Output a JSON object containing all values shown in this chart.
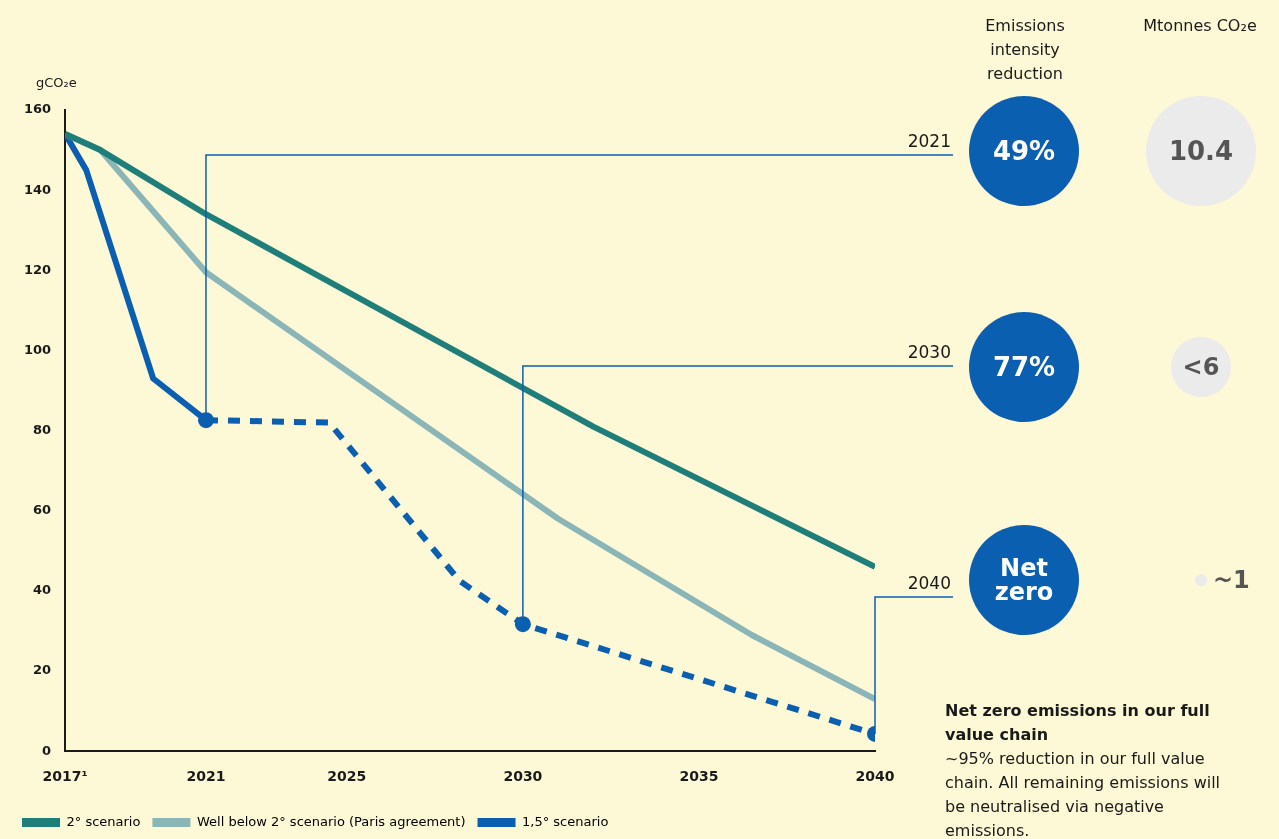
{
  "chart_data": {
    "type": "line",
    "ylabel": "gCO₂e",
    "xlim": [
      2017,
      2040
    ],
    "xticks": [
      {
        "value": 2017,
        "label": "2017¹"
      },
      2021,
      2025,
      2030,
      2035,
      2040
    ],
    "ylim": [
      0,
      160
    ],
    "yticks": [
      0,
      20,
      40,
      60,
      80,
      100,
      120,
      140,
      160
    ],
    "grid": false,
    "legend": "bottom left",
    "marker": "none",
    "line_style": "solid",
    "series": [
      {
        "name": "2° scenario",
        "color": "#1e7f7a",
        "x": [
          2017,
          2018,
          2021,
          2032,
          2040
        ],
        "values": [
          154,
          150,
          134,
          81,
          46
        ]
      },
      {
        "name": "Well below 2° scenario (Paris agreement)",
        "color": "#8ab6b7",
        "x": [
          2017,
          2018,
          2021,
          2031,
          2036.5,
          2040
        ],
        "values": [
          154,
          150,
          119.5,
          58,
          29,
          13
        ]
      },
      {
        "name": "1,5° scenario",
        "color": "#0a5fb0",
        "x": [
          2017,
          2017.6,
          2019.5,
          2021
        ],
        "values": [
          154,
          145,
          93,
          82.6
        ]
      },
      {
        "color": "#0a5fb0",
        "line_style": "dashed",
        "x": [
          2021,
          2024.5,
          2028.2,
          2030,
          2040
        ],
        "values": [
          82.6,
          82,
          42.5,
          31.7,
          4.3
        ]
      },
      {
        "type": "scatter",
        "marker": "circle",
        "color": "#0a5fb0",
        "x": [
          2021,
          2030,
          2040
        ],
        "values": [
          82.6,
          31.7,
          4.3
        ]
      }
    ],
    "annotations": [
      {
        "text": "2021",
        "x": 2021,
        "y": 82.6
      },
      {
        "text": "2030",
        "x": 2030,
        "y": 31.7
      },
      {
        "text": "2040",
        "x": 2040,
        "y": 4.3
      },
      "Emissions intensity reduction",
      "Mtonnes CO₂e",
      "49%",
      "10.4",
      "77%",
      "<6",
      "Net zero",
      "~1",
      "Net zero emissions in our full value chain",
      "~95% reduction in our full value chain. All remaining emissions will be neutralised via negative emissions."
    ]
  }
}
